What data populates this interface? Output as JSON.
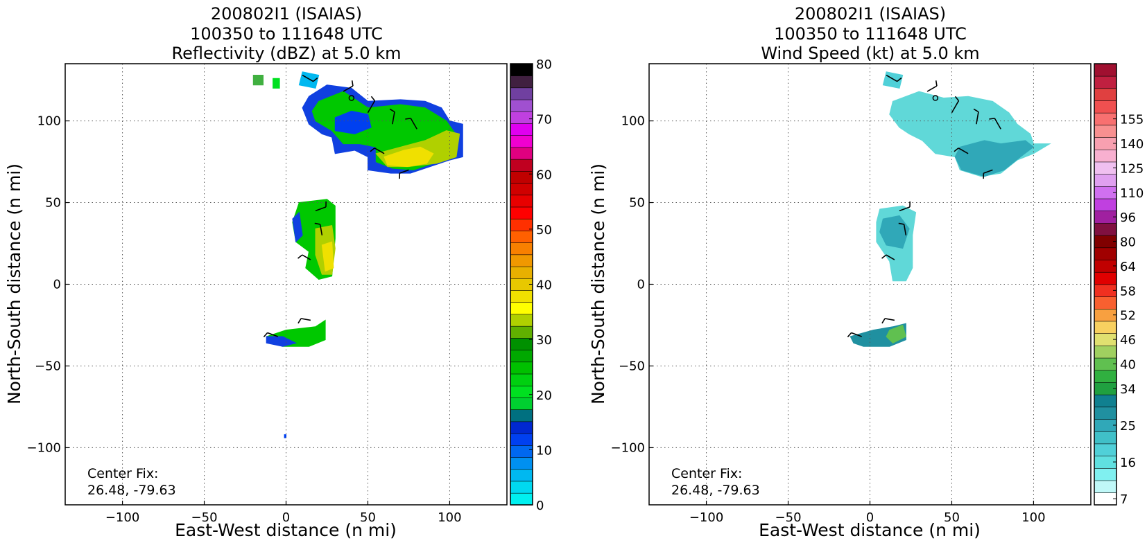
{
  "chart_data": [
    {
      "type": "heatmap",
      "title": [
        "200802I1 (ISAIAS)",
        "100350 to 111648 UTC",
        "Reflectivity (dBZ) at 5.0 km"
      ],
      "xlabel": "East-West distance (n mi)",
      "ylabel": "North-South distance (n mi)",
      "xlim": [
        -135,
        135
      ],
      "ylim": [
        -135,
        135
      ],
      "xticks": [
        -100,
        -50,
        0,
        50,
        100
      ],
      "yticks": [
        -100,
        -50,
        0,
        50,
        100
      ],
      "grid": true,
      "annotation": [
        "Center Fix:",
        "26.48, -79.63"
      ],
      "colorbar": {
        "label_values": [
          0,
          10,
          20,
          30,
          40,
          50,
          60,
          70,
          80
        ],
        "colors": [
          "#00f0f0",
          "#00d8f0",
          "#00b8f0",
          "#0090f0",
          "#0068f0",
          "#0040f0",
          "#0028d0",
          "#007080",
          "#00d030",
          "#00e020",
          "#00d010",
          "#00c000",
          "#00a800",
          "#009000",
          "#60b000",
          "#b0d000",
          "#ffff00",
          "#f0e000",
          "#e8c800",
          "#e8b000",
          "#f09800",
          "#f88000",
          "#ff6000",
          "#ff3000",
          "#ff0000",
          "#e80000",
          "#d00000",
          "#c00000",
          "#c00020",
          "#e00080",
          "#f000d0",
          "#e000f0",
          "#c040e0",
          "#a050d0",
          "#7040a0",
          "#402040",
          "#000000"
        ]
      },
      "regions": [
        {
          "points": [
            [
              10,
              130
            ],
            [
              20,
              128
            ],
            [
              18,
              120
            ],
            [
              8,
              122
            ]
          ],
          "color": "#00b8f0"
        },
        {
          "points": [
            [
              -20,
              128
            ],
            [
              -14,
              128
            ],
            [
              -14,
              122
            ],
            [
              -20,
              122
            ]
          ],
          "color": "#40b040"
        },
        {
          "points": [
            [
              -8,
              126
            ],
            [
              -4,
              126
            ],
            [
              -4,
              120
            ],
            [
              -8,
              120
            ]
          ],
          "color": "#00e020"
        },
        {
          "points": [
            [
              14,
              115
            ],
            [
              25,
              122
            ],
            [
              40,
              120
            ],
            [
              50,
              112
            ],
            [
              70,
              113
            ],
            [
              85,
              112
            ],
            [
              95,
              108
            ],
            [
              100,
              100
            ],
            [
              108,
              98
            ],
            [
              108,
              78
            ],
            [
              100,
              76
            ],
            [
              88,
              72
            ],
            [
              76,
              68
            ],
            [
              64,
              68
            ],
            [
              50,
              70
            ],
            [
              50,
              78
            ],
            [
              42,
              82
            ],
            [
              30,
              80
            ],
            [
              28,
              90
            ],
            [
              22,
              92
            ],
            [
              14,
              98
            ],
            [
              10,
              108
            ]
          ],
          "color": "#1040e0"
        },
        {
          "points": [
            [
              20,
              112
            ],
            [
              35,
              118
            ],
            [
              50,
              108
            ],
            [
              70,
              110
            ],
            [
              85,
              108
            ],
            [
              98,
              100
            ],
            [
              105,
              90
            ],
            [
              102,
              78
            ],
            [
              90,
              74
            ],
            [
              78,
              70
            ],
            [
              65,
              71
            ],
            [
              55,
              75
            ],
            [
              55,
              84
            ],
            [
              45,
              86
            ],
            [
              35,
              86
            ],
            [
              28,
              94
            ],
            [
              18,
              100
            ],
            [
              16,
              106
            ]
          ],
          "color": "#00c800"
        },
        {
          "points": [
            [
              55,
              80
            ],
            [
              70,
              84
            ],
            [
              85,
              88
            ],
            [
              98,
              94
            ],
            [
              106,
              92
            ],
            [
              104,
              78
            ],
            [
              92,
              74
            ],
            [
              75,
              72
            ],
            [
              62,
              72
            ]
          ],
          "color": "#b0d000"
        },
        {
          "points": [
            [
              60,
              78
            ],
            [
              72,
              82
            ],
            [
              82,
              84
            ],
            [
              90,
              80
            ],
            [
              86,
              74
            ],
            [
              74,
              72
            ],
            [
              62,
              73
            ]
          ],
          "color": "#f0e000"
        },
        {
          "points": [
            [
              30,
              102
            ],
            [
              40,
              106
            ],
            [
              50,
              104
            ],
            [
              52,
              96
            ],
            [
              42,
              92
            ],
            [
              30,
              94
            ]
          ],
          "color": "#0040f0"
        },
        {
          "points": [
            [
              8,
              50
            ],
            [
              25,
              52
            ],
            [
              30,
              48
            ],
            [
              30,
              28
            ],
            [
              28,
              5
            ],
            [
              20,
              3
            ],
            [
              12,
              10
            ],
            [
              14,
              20
            ],
            [
              6,
              26
            ],
            [
              4,
              38
            ]
          ],
          "color": "#00c800"
        },
        {
          "points": [
            [
              18,
              34
            ],
            [
              28,
              36
            ],
            [
              30,
              22
            ],
            [
              28,
              6
            ],
            [
              22,
              6
            ],
            [
              18,
              18
            ]
          ],
          "color": "#b0d000"
        },
        {
          "points": [
            [
              22,
              24
            ],
            [
              28,
              26
            ],
            [
              29,
              10
            ],
            [
              24,
              8
            ]
          ],
          "color": "#f0e000"
        },
        {
          "points": [
            [
              4,
              40
            ],
            [
              8,
              44
            ],
            [
              10,
              30
            ],
            [
              6,
              26
            ]
          ],
          "color": "#1040e0"
        },
        {
          "points": [
            [
              -10,
              -36
            ],
            [
              -12,
              -32
            ],
            [
              0,
              -28
            ],
            [
              18,
              -26
            ],
            [
              24,
              -22
            ],
            [
              24,
              -34
            ],
            [
              14,
              -38
            ],
            [
              -2,
              -38
            ]
          ],
          "color": "#00c800"
        },
        {
          "points": [
            [
              -12,
              -36
            ],
            [
              -12,
              -32
            ],
            [
              -2,
              -32
            ],
            [
              6,
              -36
            ],
            [
              -2,
              -38
            ]
          ],
          "color": "#1040e0"
        },
        {
          "points": [
            [
              -1,
              -92
            ],
            [
              0,
              -92
            ],
            [
              0,
              -94
            ],
            [
              -1,
              -94
            ]
          ],
          "color": "#0040f0"
        }
      ]
    },
    {
      "type": "heatmap",
      "title": [
        "200802I1 (ISAIAS)",
        "100350 to 111648 UTC",
        "Wind Speed (kt) at 5.0 km"
      ],
      "xlabel": "East-West distance (n mi)",
      "ylabel": "North-South distance (n mi)",
      "xlim": [
        -135,
        135
      ],
      "ylim": [
        -135,
        135
      ],
      "xticks": [
        -100,
        -50,
        0,
        50,
        100
      ],
      "yticks": [
        -100,
        -50,
        0,
        50,
        100
      ],
      "grid": true,
      "annotation": [
        "Center Fix:",
        "26.48, -79.63"
      ],
      "colorbar": {
        "label_values": [
          7,
          16,
          25,
          34,
          40,
          46,
          52,
          58,
          64,
          80,
          96,
          110,
          125,
          140,
          155
        ],
        "label_slots": [
          0,
          3,
          6,
          9,
          11,
          13,
          15,
          17,
          19,
          21,
          23,
          25,
          27,
          29,
          31
        ],
        "colors": [
          "#ffffff",
          "#c0f8f8",
          "#80f0f0",
          "#60e0e0",
          "#50d0d8",
          "#40c0c8",
          "#30a8b8",
          "#2090a0",
          "#108090",
          "#20a040",
          "#30b040",
          "#60c050",
          "#a0d060",
          "#e0e070",
          "#f8d060",
          "#f8a040",
          "#f86030",
          "#f03020",
          "#e00000",
          "#c00000",
          "#a00000",
          "#800000",
          "#801040",
          "#a020a0",
          "#c040e0",
          "#d070f0",
          "#e0a0f0",
          "#f0c0f0",
          "#f8b0d0",
          "#f8a0b0",
          "#f89090",
          "#f87070",
          "#f05050",
          "#e04040",
          "#c02040",
          "#a01030"
        ]
      },
      "regions": [
        {
          "points": [
            [
              10,
              130
            ],
            [
              20,
              128
            ],
            [
              18,
              120
            ],
            [
              8,
              122
            ]
          ],
          "color": "#50d0d8"
        },
        {
          "points": [
            [
              14,
              112
            ],
            [
              30,
              118
            ],
            [
              45,
              114
            ],
            [
              60,
              115
            ],
            [
              75,
              112
            ],
            [
              85,
              105
            ],
            [
              90,
              98
            ],
            [
              98,
              92
            ],
            [
              100,
              86
            ],
            [
              110,
              86
            ],
            [
              100,
              80
            ],
            [
              90,
              76
            ],
            [
              80,
              68
            ],
            [
              68,
              66
            ],
            [
              55,
              70
            ],
            [
              52,
              78
            ],
            [
              40,
              80
            ],
            [
              32,
              88
            ],
            [
              24,
              92
            ],
            [
              18,
              96
            ],
            [
              12,
              104
            ]
          ],
          "color": "#60d8d8"
        },
        {
          "points": [
            [
              55,
              84
            ],
            [
              70,
              88
            ],
            [
              80,
              86
            ],
            [
              95,
              88
            ],
            [
              100,
              84
            ],
            [
              92,
              78
            ],
            [
              82,
              70
            ],
            [
              70,
              66
            ],
            [
              56,
              70
            ],
            [
              52,
              78
            ]
          ],
          "color": "#30a8b8"
        },
        {
          "points": [
            [
              6,
              46
            ],
            [
              20,
              48
            ],
            [
              28,
              44
            ],
            [
              26,
              30
            ],
            [
              26,
              10
            ],
            [
              22,
              2
            ],
            [
              14,
              2
            ],
            [
              12,
              14
            ],
            [
              4,
              26
            ],
            [
              4,
              38
            ]
          ],
          "color": "#60d8d8"
        },
        {
          "points": [
            [
              8,
              40
            ],
            [
              18,
              42
            ],
            [
              24,
              34
            ],
            [
              20,
              22
            ],
            [
              10,
              24
            ],
            [
              6,
              32
            ]
          ],
          "color": "#30a8b8"
        },
        {
          "points": [
            [
              -10,
              -36
            ],
            [
              -12,
              -32
            ],
            [
              2,
              -28
            ],
            [
              14,
              -26
            ],
            [
              22,
              -24
            ],
            [
              22,
              -34
            ],
            [
              12,
              -38
            ],
            [
              -4,
              -38
            ]
          ],
          "color": "#2090a0"
        },
        {
          "points": [
            [
              12,
              -28
            ],
            [
              20,
              -25
            ],
            [
              22,
              -32
            ],
            [
              14,
              -36
            ],
            [
              10,
              -32
            ]
          ],
          "color": "#60c050"
        }
      ]
    }
  ]
}
